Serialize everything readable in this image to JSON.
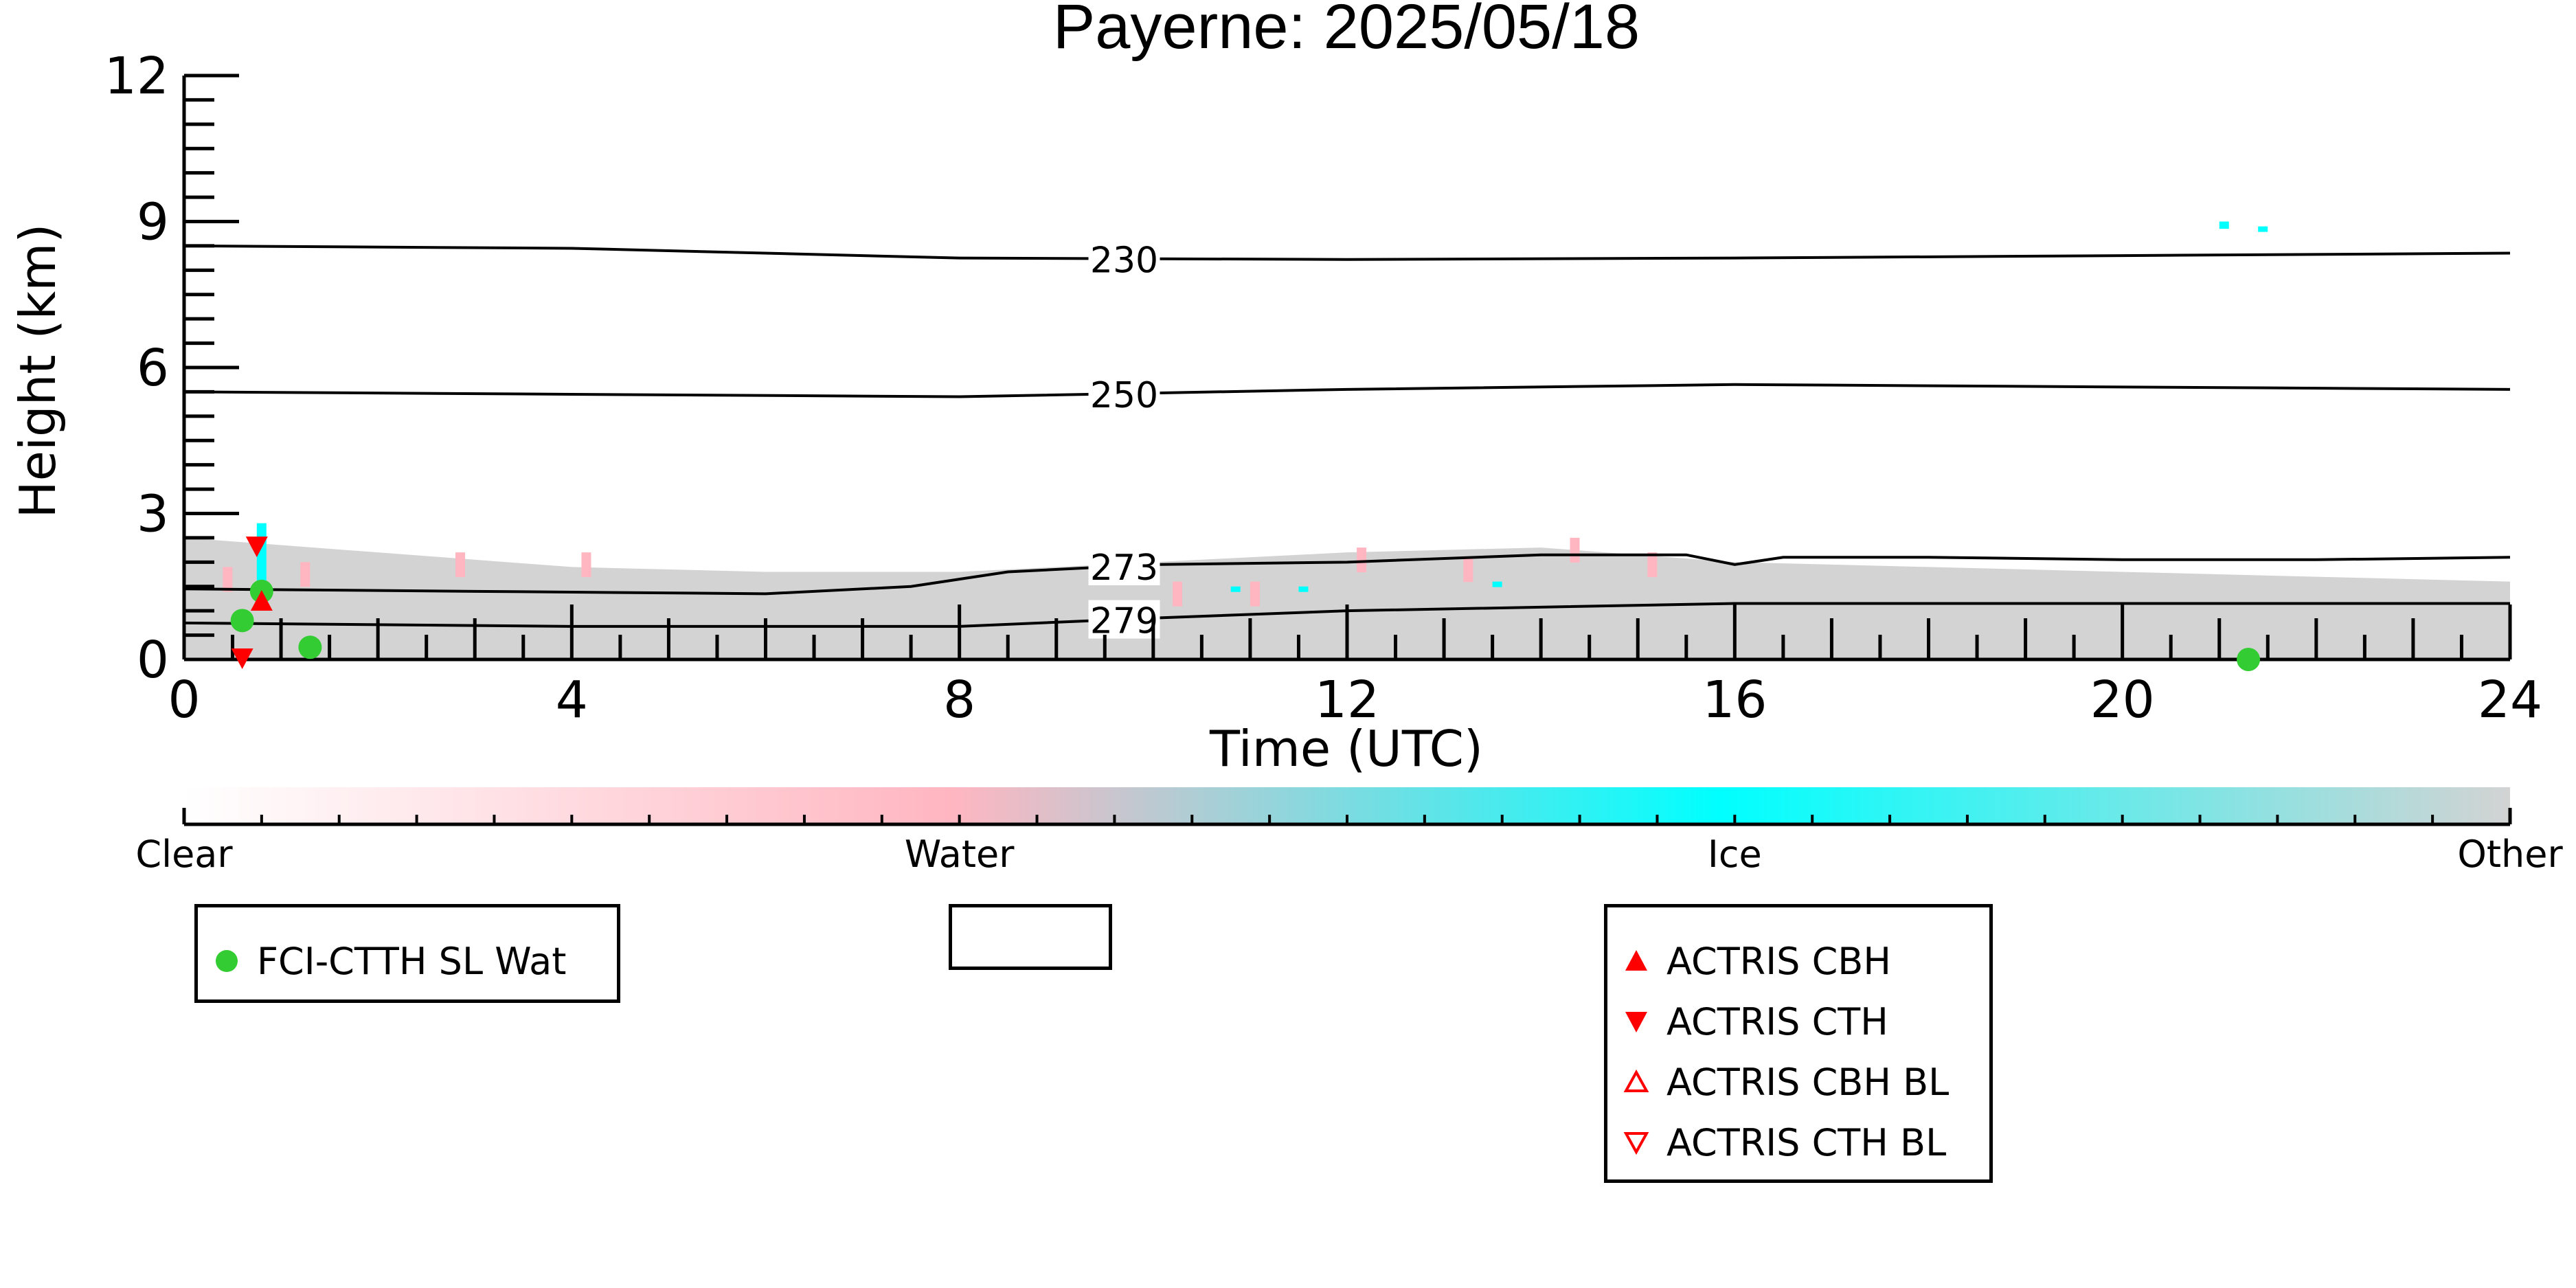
{
  "chart_data": {
    "type": "heatmap",
    "title": "Payerne: 2025/05/18",
    "xlabel": "Time (UTC)",
    "ylabel": "Height (km)",
    "xlim": [
      0,
      24
    ],
    "ylim": [
      0,
      12
    ],
    "x_ticks": [
      "0",
      "4",
      "8",
      "12",
      "16",
      "20",
      "24"
    ],
    "y_ticks": [
      "0",
      "3",
      "6",
      "9",
      "12"
    ],
    "colorbar": {
      "labels": [
        "Clear",
        "Water",
        "Ice",
        "Other"
      ],
      "colors": [
        "#ffffff",
        "#ffb6c1",
        "#00ffff",
        "#d3d3d3"
      ]
    },
    "contours": [
      {
        "label": "230",
        "points": [
          [
            0,
            8.5
          ],
          [
            4,
            8.45
          ],
          [
            8,
            8.25
          ],
          [
            12,
            8.22
          ],
          [
            16,
            8.25
          ],
          [
            20,
            8.3
          ],
          [
            24,
            8.35
          ]
        ]
      },
      {
        "label": "250",
        "points": [
          [
            0,
            5.5
          ],
          [
            4,
            5.45
          ],
          [
            8,
            5.4
          ],
          [
            12,
            5.55
          ],
          [
            16,
            5.65
          ],
          [
            20,
            5.6
          ],
          [
            24,
            5.55
          ]
        ]
      },
      {
        "label": "273",
        "points": [
          [
            0,
            1.45
          ],
          [
            3,
            1.4
          ],
          [
            6,
            1.35
          ],
          [
            7.5,
            1.5
          ],
          [
            8.5,
            1.8
          ],
          [
            10,
            1.95
          ],
          [
            12,
            2.0
          ],
          [
            14,
            2.15
          ],
          [
            15.5,
            2.15
          ],
          [
            16,
            1.95
          ],
          [
            16.5,
            2.1
          ],
          [
            18,
            2.1
          ],
          [
            20,
            2.05
          ],
          [
            22,
            2.05
          ],
          [
            24,
            2.1
          ]
        ]
      },
      {
        "label": "279",
        "points": [
          [
            0,
            0.75
          ],
          [
            4,
            0.68
          ],
          [
            8,
            0.68
          ],
          [
            10,
            0.85
          ],
          [
            12,
            1.0
          ],
          [
            16,
            1.15
          ],
          [
            20,
            1.15
          ],
          [
            24,
            1.15
          ]
        ]
      }
    ],
    "ice_cloud_band": {
      "x": [
        0,
        24
      ],
      "top": [
        2.5,
        2.2,
        1.9,
        1.8,
        1.8,
        2.0,
        2.2,
        2.3,
        2.0,
        1.9,
        1.8,
        1.7,
        1.6
      ],
      "base": 0
    },
    "legends": [
      {
        "entries": [
          {
            "label": "FCI-CTTH SL Wat",
            "symbol": "circle",
            "color": "#33cc33"
          }
        ]
      },
      {
        "entries": []
      },
      {
        "entries": [
          {
            "label": "ACTRIS CBH",
            "symbol": "triangle-up-filled",
            "color": "#ff0000"
          },
          {
            "label": "ACTRIS CTH",
            "symbol": "triangle-down-filled",
            "color": "#ff0000"
          },
          {
            "label": "ACTRIS CBH BL",
            "symbol": "triangle-up-open",
            "color": "#ff0000"
          },
          {
            "label": "ACTRIS CTH BL",
            "symbol": "triangle-down-open",
            "color": "#ff0000"
          }
        ]
      }
    ],
    "points": {
      "fci_ctth_sl_wat": [
        [
          0.6,
          0.8
        ],
        [
          0.8,
          1.4
        ],
        [
          1.3,
          0.25
        ],
        [
          21.3,
          0.0
        ]
      ],
      "actris_cth": [
        [
          0.75,
          2.3
        ],
        [
          0.6,
          0.0
        ]
      ],
      "actris_cbh": [
        [
          0.8,
          1.2
        ]
      ]
    }
  }
}
